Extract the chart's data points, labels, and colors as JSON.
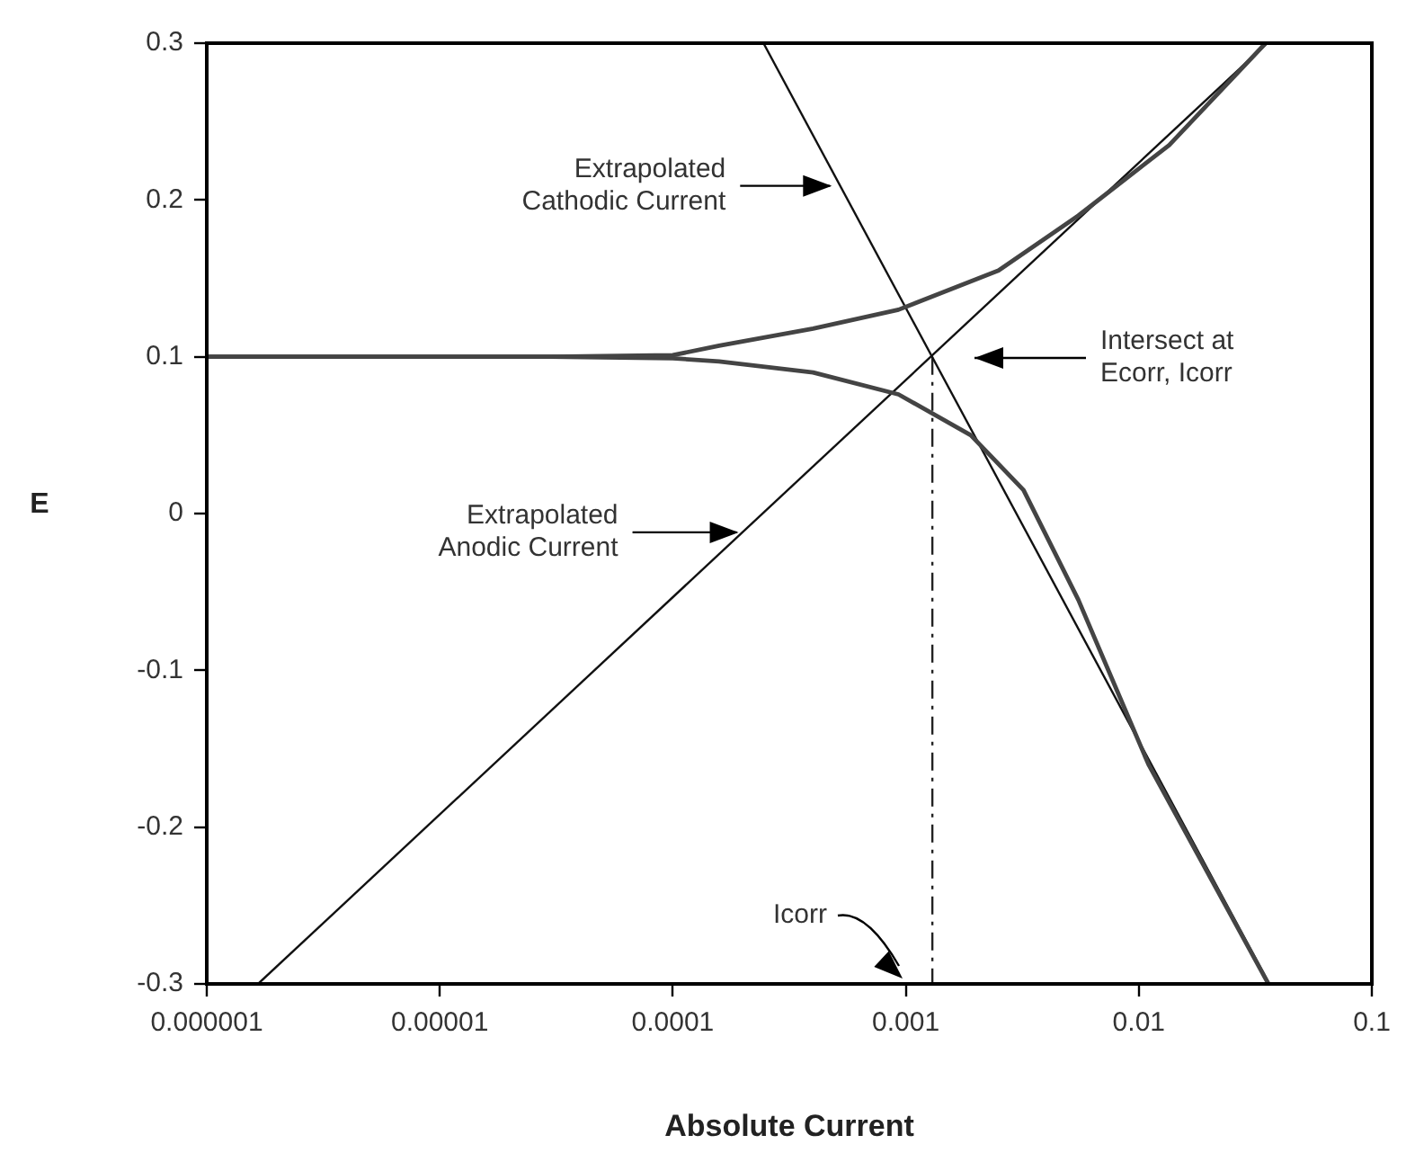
{
  "chart_data": {
    "type": "line",
    "xlabel": "Absolute Current",
    "ylabel": "E",
    "log": "x",
    "xlim": [
      1e-06,
      0.1
    ],
    "ylim": [
      -0.3,
      0.3
    ],
    "xticks": [
      {
        "value": 1e-06,
        "label": "0.000001"
      },
      {
        "value": 1e-05,
        "label": "0.00001"
      },
      {
        "value": 0.0001,
        "label": "0.0001"
      },
      {
        "value": 0.001,
        "label": "0.001"
      },
      {
        "value": 0.01,
        "label": "0.01"
      },
      {
        "value": 0.1,
        "label": "0.1"
      }
    ],
    "yticks": [
      -0.3,
      -0.2,
      -0.1,
      0,
      0.1,
      0.2,
      0.3
    ],
    "grid": false,
    "legend": false,
    "marker": "none",
    "series": [
      {
        "color": "#444444",
        "x": [
          1e-06,
          3e-05,
          0.0001,
          0.000158,
          0.0004,
          0.00093,
          0.0025,
          0.0055,
          0.0135,
          0.035
        ],
        "values": [
          0.1,
          0.1,
          0.101,
          0.107,
          0.118,
          0.13,
          0.155,
          0.19,
          0.235,
          0.3
        ]
      },
      {
        "color": "#444444",
        "x": [
          1e-06,
          3e-05,
          0.0001,
          0.000158,
          0.0004,
          0.00093,
          0.0019,
          0.0032,
          0.0055,
          0.011,
          0.036
        ],
        "values": [
          0.1,
          0.1,
          0.099,
          0.097,
          0.09,
          0.076,
          0.05,
          0.015,
          -0.055,
          -0.16,
          -0.3
        ]
      },
      {
        "color": "#111111",
        "x": [
          0.000245,
          0.0363
        ],
        "values": [
          0.3,
          -0.3
        ]
      },
      {
        "color": "#111111",
        "x": [
          1.66e-06,
          0.0355
        ],
        "values": [
          -0.3,
          0.3
        ]
      },
      {
        "color": "#222222",
        "line_style": "dashed",
        "x": [
          0.0013,
          0.0013
        ],
        "values": [
          0.1,
          -0.3
        ]
      }
    ],
    "annotations": [
      {
        "text": "Extrapolated\nCathodic Current",
        "x": 0.00049,
        "y": 0.209
      },
      {
        "text": "Extrapolated\nAnodic Current",
        "x": 0.000195,
        "y": -0.012
      },
      "Intersect at\nEcorr, Icorr",
      "Icorr"
    ]
  }
}
